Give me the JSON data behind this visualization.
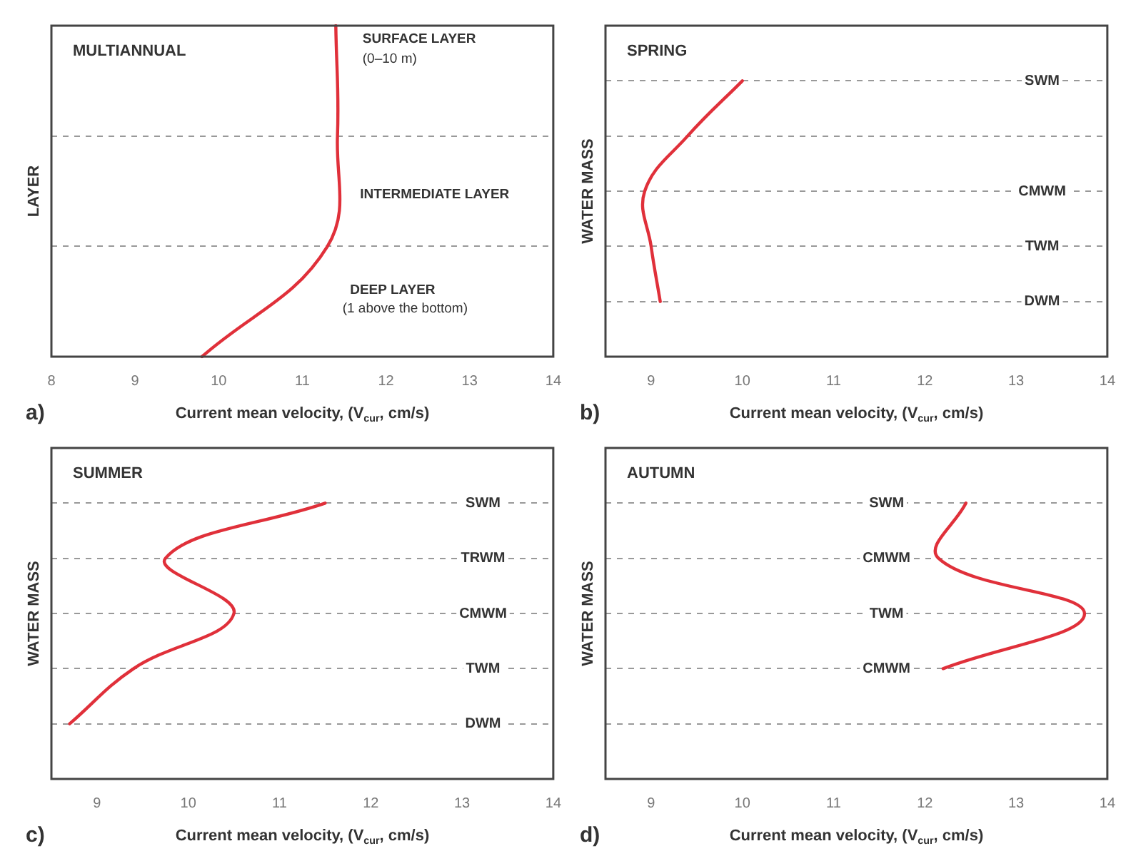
{
  "chart_data": [
    {
      "type": "line",
      "orientation": "horizontal",
      "title": "MULTIANNUAL",
      "xlabel": "Current mean velocity, (V$_{cur}$, cm/s)",
      "ylabel": "LAYER",
      "xlim": [
        8,
        14
      ],
      "xticks": [
        8,
        9,
        10,
        11,
        12,
        13,
        14
      ],
      "grid": "y",
      "categories": [
        null,
        null,
        null,
        null
      ],
      "series": [
        {
          "color": "#e0303a",
          "values": [
            11.4,
            11.42,
            11.3,
            9.8
          ]
        }
      ],
      "annotations": [
        "a)",
        "SURFACE LAYER",
        "(0–10 m)",
        "INTERMEDIATE LAYER",
        "DEEP LAYER",
        "(1 above the bottom)"
      ]
    },
    {
      "type": "line",
      "orientation": "horizontal",
      "title": "SPRING",
      "xlabel": "Current mean velocity, (V$_{cur}$, cm/s)",
      "ylabel": "WATER MASS",
      "xlim": [
        8.5,
        14
      ],
      "xticks": [
        9,
        10,
        11,
        12,
        13,
        14
      ],
      "grid": "y",
      "categories": [
        null,
        "SWM",
        null,
        "CMWM",
        "TWM",
        "DWM",
        null
      ],
      "series": [
        {
          "color": "#e0303a",
          "values": [
            null,
            10.0,
            9.4,
            8.93,
            9.0,
            9.1,
            null
          ]
        }
      ],
      "annotations": [
        "b)"
      ]
    },
    {
      "type": "line",
      "orientation": "horizontal",
      "title": "SUMMER",
      "xlabel": "Current mean velocity, (V$_{cur}$, cm/s)",
      "ylabel": "WATER MASS",
      "xlim": [
        8.5,
        14
      ],
      "xticks": [
        9,
        10,
        11,
        12,
        13,
        14
      ],
      "grid": "y",
      "categories": [
        null,
        "SWM",
        "TRWM",
        "CMWM",
        "TWM",
        "DWM",
        null
      ],
      "series": [
        {
          "color": "#e0303a",
          "values": [
            null,
            11.5,
            9.75,
            10.5,
            9.4,
            8.7,
            null
          ]
        }
      ],
      "annotations": [
        "c)"
      ]
    },
    {
      "type": "line",
      "orientation": "horizontal",
      "title": "AUTUMN",
      "xlabel": "Current mean velocity, (V$_{cur}$, cm/s)",
      "ylabel": "WATER MASS",
      "xlim": [
        8.5,
        14
      ],
      "xticks": [
        9,
        10,
        11,
        12,
        13,
        14
      ],
      "grid": "y",
      "categories": [
        null,
        "SWM",
        "CMWM",
        "TWM",
        "CMWM",
        null,
        null
      ],
      "series": [
        {
          "color": "#e0303a",
          "values": [
            null,
            12.45,
            12.15,
            13.75,
            12.2,
            null,
            null
          ]
        }
      ],
      "annotations": [
        "d)"
      ]
    }
  ]
}
